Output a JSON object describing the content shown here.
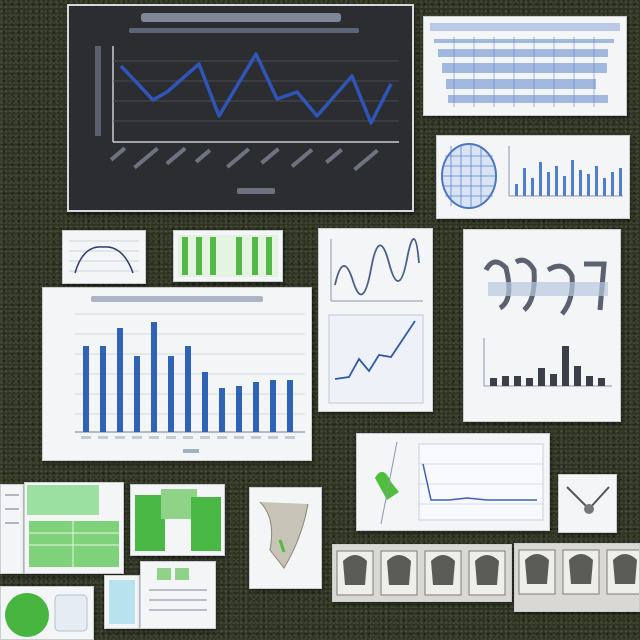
{
  "scene": {
    "description_free": true
  },
  "colors": {
    "background": "#2e3222",
    "dark_panel": "#2c2d30",
    "line_blue": "#2f55b8",
    "bar_blue": "#2e63b5",
    "accent_green": "#4fbf3b",
    "paper": "#f4f5f7"
  },
  "icons": [
    "chart-icon",
    "bar-chart-icon",
    "line-chart-icon",
    "map-icon"
  ]
}
